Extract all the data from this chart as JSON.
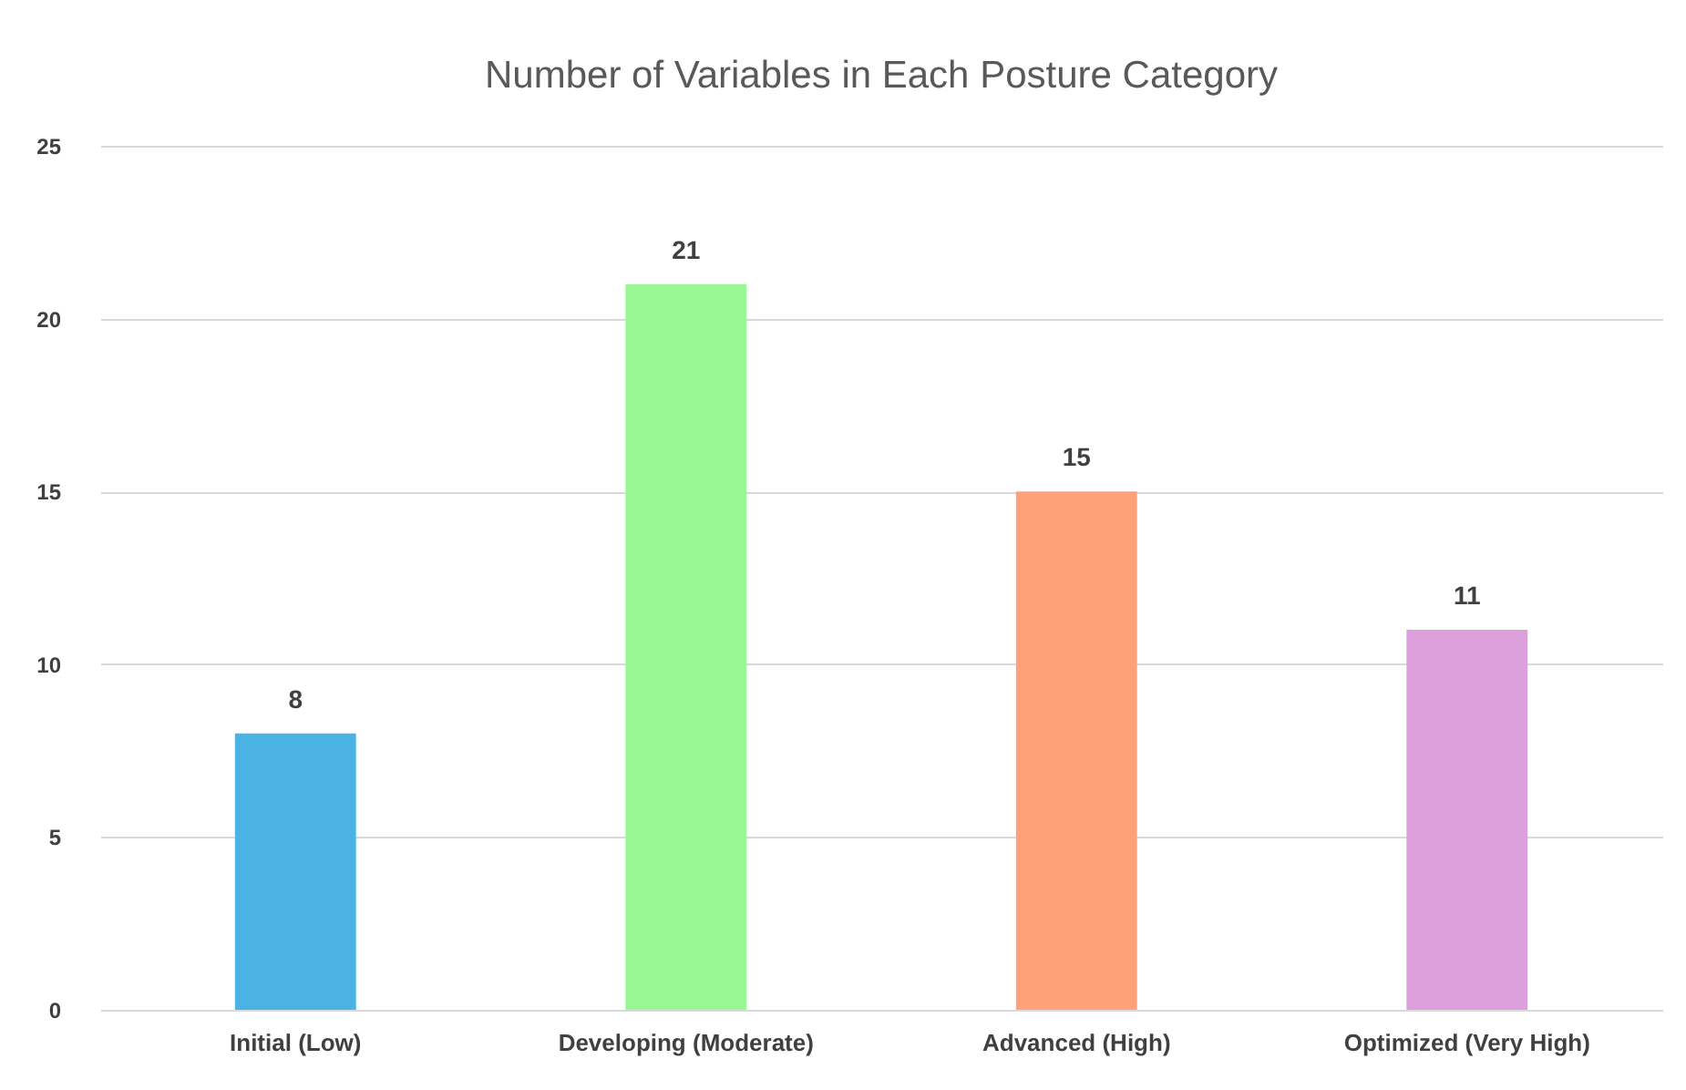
{
  "chart_data": {
    "type": "bar",
    "title": "Number of Variables in Each Posture Category",
    "categories": [
      "Initial (Low)",
      "Developing (Moderate)",
      "Advanced (High)",
      "Optimized (Very High)"
    ],
    "values": [
      8,
      21,
      15,
      11
    ],
    "colors": [
      "#4ab3e3",
      "#98f792",
      "#ffa07a",
      "#dda0dd"
    ],
    "ylim": [
      0,
      25
    ],
    "yticks": [
      0,
      5,
      10,
      15,
      20,
      25
    ],
    "grid": "y",
    "data_labels": true
  }
}
